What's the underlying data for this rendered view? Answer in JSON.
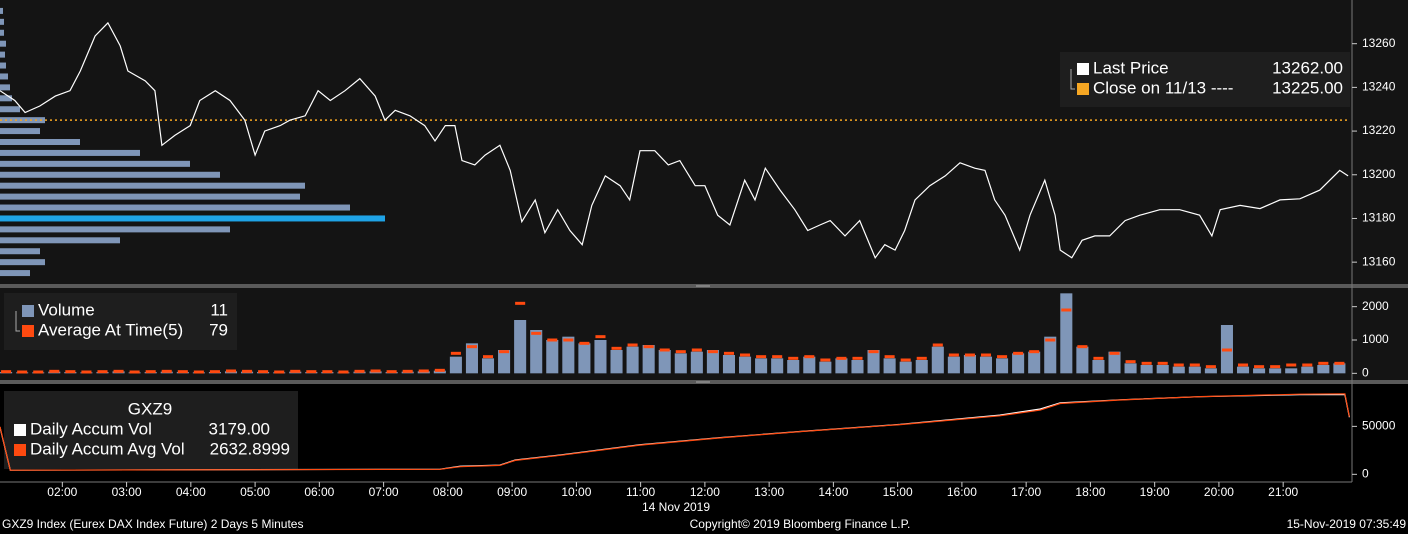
{
  "chart_data": [
    {
      "type": "line",
      "x": [
        1.03,
        1.26,
        1.42,
        1.65,
        1.89,
        2.12,
        2.28,
        2.51,
        2.71,
        2.9,
        3.02,
        3.29,
        3.44,
        3.55,
        3.75,
        3.99,
        4.14,
        4.38,
        4.61,
        4.84,
        5.0,
        5.15,
        5.39,
        5.54,
        5.78,
        5.98,
        6.17,
        6.4,
        6.63,
        6.87,
        7.02,
        7.18,
        7.41,
        7.64,
        7.8,
        7.96,
        8.11,
        8.22,
        8.42,
        8.58,
        8.81,
        8.97,
        9.15,
        9.36,
        9.51,
        9.71,
        9.9,
        10.09,
        10.24,
        10.45,
        10.68,
        10.83,
        10.99,
        11.22,
        11.43,
        11.61,
        11.85,
        12.0,
        12.2,
        12.39,
        12.62,
        12.78,
        12.94,
        13.17,
        13.4,
        13.6,
        13.79,
        13.95,
        14.18,
        14.41,
        14.65,
        14.8,
        14.96,
        15.11,
        15.27,
        15.5,
        15.74,
        15.97,
        16.2,
        16.36,
        16.51,
        16.67,
        16.9,
        17.06,
        17.29,
        17.45,
        17.53,
        17.71,
        17.87,
        18.07,
        18.3,
        18.54,
        18.77,
        19.08,
        19.39,
        19.7,
        19.89,
        20.02,
        20.33,
        20.64,
        20.95,
        21.26,
        21.57,
        21.88,
        22.01
      ],
      "series": [
        {
          "name": "Last Price",
          "color": "#ffffff",
          "last_value": 13262,
          "last_label": "13262.00",
          "values": [
            13238.5,
            13234,
            13228.5,
            13231.5,
            13236,
            13238.5,
            13247.5,
            13263.5,
            13269.5,
            13259,
            13247.5,
            13243,
            13238.5,
            13213.5,
            13218,
            13222.5,
            13234,
            13238.5,
            13234,
            13225,
            13209,
            13220,
            13222.5,
            13225,
            13227,
            13238.5,
            13234,
            13238.5,
            13244,
            13236,
            13225,
            13229.5,
            13227,
            13222.5,
            13215.5,
            13222.5,
            13222.5,
            13206.5,
            13204.5,
            13209,
            13213.5,
            13202,
            13178.5,
            13188.5,
            13173.5,
            13184,
            13174.5,
            13168,
            13186,
            13199.5,
            13195,
            13188.5,
            13211,
            13211,
            13204.5,
            13206.5,
            13195,
            13195,
            13181.5,
            13177,
            13197.5,
            13188.5,
            13203,
            13193,
            13184,
            13174.5,
            13177,
            13179,
            13172,
            13179,
            13162,
            13168,
            13165.5,
            13174.5,
            13188.5,
            13195,
            13199.5,
            13205.5,
            13203,
            13202,
            13188.5,
            13181.5,
            13165.5,
            13181.5,
            13197.5,
            13181.5,
            13165.5,
            13162,
            13170,
            13172,
            13172,
            13179,
            13181.5,
            13184,
            13184,
            13181.5,
            13172,
            13184,
            13186,
            13184.5,
            13188.5,
            13189,
            13193,
            13202,
            13199.5
          ]
        }
      ],
      "reference": {
        "name": "Close on 11/13 ----",
        "value": 13225,
        "value_label": "13225.00",
        "color": "#f5a623"
      },
      "profile": {
        "color": "#7f96b8",
        "peak_color": "#1fa3e6",
        "xlim": [
          0,
          1350
        ],
        "levels": [
          13155,
          13160,
          13165,
          13170,
          13175,
          13180,
          13185,
          13190,
          13195,
          13200,
          13205,
          13210,
          13215,
          13220,
          13225,
          13230,
          13235,
          13240,
          13245,
          13250,
          13255,
          13260,
          13265,
          13270,
          13275
        ],
        "values": [
          30,
          45,
          40,
          120,
          230,
          385,
          350,
          300,
          305,
          220,
          190,
          140,
          80,
          40,
          45,
          20,
          12,
          10,
          8,
          6,
          5,
          6,
          4,
          4,
          3
        ]
      },
      "xlim": [
        1.03,
        22.04
      ],
      "ylim": [
        13150,
        13280
      ],
      "yticks": [
        13160,
        13180,
        13200,
        13220,
        13240,
        13260
      ]
    },
    {
      "type": "bar",
      "x": [
        1,
        1.25,
        1.5,
        1.75,
        2,
        2.25,
        2.5,
        2.75,
        3,
        3.25,
        3.5,
        3.75,
        4,
        4.25,
        4.5,
        4.75,
        5,
        5.25,
        5.5,
        5.75,
        6,
        6.25,
        6.5,
        6.75,
        7,
        7.25,
        7.5,
        7.75,
        8,
        8.25,
        8.5,
        8.75,
        9,
        9.25,
        9.5,
        9.75,
        10,
        10.25,
        10.5,
        10.75,
        11,
        11.25,
        11.5,
        11.75,
        12,
        12.25,
        12.5,
        12.75,
        13,
        13.25,
        13.5,
        13.75,
        14,
        14.25,
        14.5,
        14.75,
        15,
        15.25,
        15.5,
        15.75,
        16,
        16.25,
        16.5,
        16.75,
        17,
        17.25,
        17.5,
        17.75,
        18,
        18.25,
        18.5,
        18.75,
        19,
        19.25,
        19.5,
        19.75,
        20,
        20.25,
        20.5,
        20.75,
        21,
        21.25,
        21.5,
        21.75
      ],
      "series": [
        {
          "name": "Volume",
          "color": "#7f96b8",
          "last_value": 11,
          "values": [
            40,
            30,
            30,
            50,
            40,
            30,
            40,
            60,
            30,
            40,
            50,
            40,
            30,
            40,
            60,
            50,
            40,
            30,
            50,
            40,
            40,
            30,
            50,
            60,
            40,
            50,
            60,
            80,
            500,
            900,
            450,
            700,
            1600,
            1300,
            1000,
            1100,
            900,
            1000,
            700,
            800,
            850,
            700,
            600,
            650,
            700,
            550,
            500,
            450,
            450,
            400,
            500,
            350,
            450,
            400,
            700,
            450,
            350,
            400,
            800,
            500,
            550,
            500,
            450,
            600,
            650,
            1100,
            2400,
            800,
            400,
            650,
            300,
            250,
            250,
            200,
            200,
            150,
            1450,
            200,
            150,
            150,
            150,
            200,
            250,
            300
          ]
        },
        {
          "name": "Average At Time(5)",
          "color": "#ff4a10",
          "last_value": 79,
          "values": [
            50,
            40,
            40,
            60,
            50,
            40,
            50,
            60,
            40,
            50,
            60,
            50,
            40,
            50,
            70,
            60,
            50,
            40,
            60,
            50,
            50,
            40,
            60,
            70,
            50,
            60,
            70,
            90,
            600,
            800,
            500,
            650,
            2100,
            1200,
            1000,
            1000,
            900,
            1100,
            750,
            850,
            800,
            700,
            650,
            700,
            650,
            600,
            550,
            500,
            500,
            450,
            500,
            400,
            450,
            450,
            650,
            500,
            400,
            450,
            850,
            550,
            550,
            550,
            500,
            600,
            650,
            1000,
            1900,
            800,
            450,
            600,
            350,
            300,
            300,
            250,
            250,
            200,
            700,
            250,
            200,
            200,
            250,
            250,
            300,
            300
          ]
        }
      ],
      "xlim": [
        1.03,
        22.04
      ],
      "ylim": [
        -200,
        2500
      ],
      "yticks": [
        0,
        1000,
        2000
      ]
    },
    {
      "type": "line",
      "title": "GXZ9",
      "x": [
        1.03,
        1.19,
        7.88,
        8.19,
        8.81,
        9.05,
        9.75,
        10.99,
        12.24,
        13.48,
        15.04,
        16.59,
        17.22,
        17.53,
        18.46,
        19.71,
        21.26,
        21.96,
        22.03
      ],
      "series": [
        {
          "name": "Daily Accum Vol",
          "color": "#ffffff",
          "last_value": 3179,
          "last_label": "3179.00",
          "values": [
            49000,
            4300,
            5300,
            8500,
            9600,
            14900,
            20200,
            30900,
            38300,
            44700,
            52100,
            61700,
            68100,
            74500,
            77700,
            80900,
            83000,
            83000,
            59600
          ]
        },
        {
          "name": "Daily Accum Avg Vol",
          "color": "#ff4a10",
          "last_value": 2632.8999,
          "values": [
            49500,
            4300,
            5200,
            8000,
            9300,
            14500,
            19800,
            30500,
            38000,
            44500,
            51800,
            61000,
            67000,
            73800,
            77500,
            81000,
            83500,
            84000,
            60000
          ]
        }
      ],
      "xlim": [
        1.03,
        22.04
      ],
      "ylim": [
        -8000,
        90000
      ],
      "yticks": [
        0,
        50000
      ],
      "xticks": [
        {
          "value": 2,
          "label": "02:00"
        },
        {
          "value": 3,
          "label": "03:00"
        },
        {
          "value": 4,
          "label": "04:00"
        },
        {
          "value": 5,
          "label": "05:00"
        },
        {
          "value": 6,
          "label": "06:00"
        },
        {
          "value": 7,
          "label": "07:00"
        },
        {
          "value": 8,
          "label": "08:00"
        },
        {
          "value": 9,
          "label": "09:00"
        },
        {
          "value": 10,
          "label": "10:00"
        },
        {
          "value": 11,
          "label": "11:00"
        },
        {
          "value": 12,
          "label": "12:00"
        },
        {
          "value": 13,
          "label": "13:00"
        },
        {
          "value": 14,
          "label": "14:00"
        },
        {
          "value": 15,
          "label": "15:00"
        },
        {
          "value": 16,
          "label": "16:00"
        },
        {
          "value": 17,
          "label": "17:00"
        },
        {
          "value": 18,
          "label": "18:00"
        },
        {
          "value": 19,
          "label": "19:00"
        },
        {
          "value": 20,
          "label": "20:00"
        },
        {
          "value": 21,
          "label": "21:00"
        }
      ]
    }
  ],
  "date_label": "14 Nov 2019",
  "footer": {
    "left": "GXZ9 Index (Eurex DAX Index Future) 2 Days 5 Minutes",
    "center": "Copyright© 2019 Bloomberg Finance L.P.",
    "right": "15-Nov-2019 07:35:49"
  }
}
